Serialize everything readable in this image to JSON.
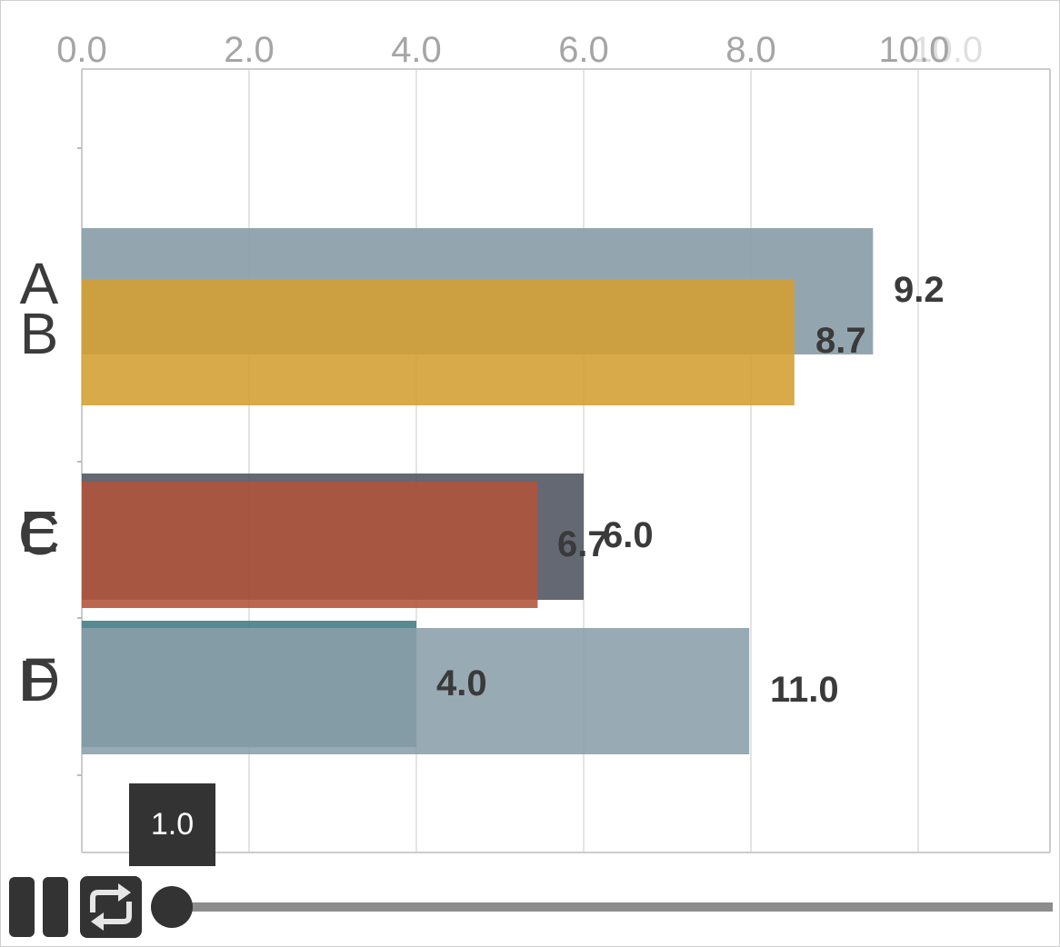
{
  "chart_data": {
    "type": "bar",
    "orientation": "horizontal",
    "axis_position": "top",
    "xlim": [
      0,
      11.5
    ],
    "ticks": [
      "0.0",
      "2.0",
      "4.0",
      "6.0",
      "8.0",
      "10.0",
      "10.0"
    ],
    "grid": true,
    "series": [
      {
        "bars": [
          {
            "category": "A",
            "value": 9.2,
            "color": "#8a9ea9",
            "label": "9.2"
          },
          {
            "category": "B",
            "value": 8.7,
            "color": "#d49e30",
            "label": "8.7"
          },
          {
            "category": "E",
            "value": 6.0,
            "color": "#4d535e",
            "label": "6.0"
          },
          {
            "category": "C",
            "value": 6.7,
            "color": "#b0533a",
            "label": "6.7"
          },
          {
            "category": "F",
            "value": 4.0,
            "color": "#49808a",
            "label": "4.0"
          },
          {
            "category": "D",
            "value": 11.0,
            "color": "#8a9ea9",
            "label": "11.0"
          }
        ]
      }
    ]
  },
  "controls": {
    "tooltip_value": "1.0",
    "progress": 0
  }
}
